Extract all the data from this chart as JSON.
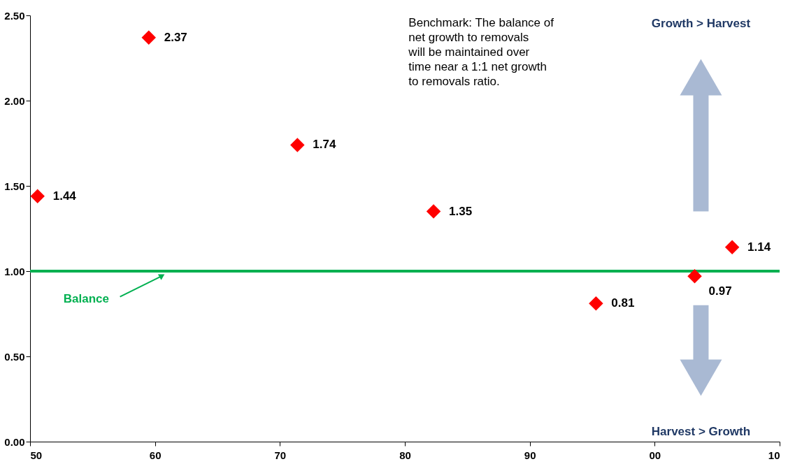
{
  "chart_data": {
    "type": "scatter",
    "x": [
      1950.6,
      1959.5,
      1971.4,
      1982.3,
      1995.3,
      2003.2,
      2006.2
    ],
    "values": [
      1.44,
      2.37,
      1.74,
      1.35,
      0.81,
      0.97,
      1.14
    ],
    "color": "#ff0000",
    "marker": "diamond",
    "data_labels": true,
    "xlim": [
      1950,
      2010
    ],
    "xticks": [
      {
        "value": 1950,
        "label": "50"
      },
      {
        "value": 1960,
        "label": "60"
      },
      {
        "value": 1970,
        "label": "70"
      },
      {
        "value": 1980,
        "label": "80"
      },
      {
        "value": 1990,
        "label": "90"
      },
      {
        "value": 2000,
        "label": "00"
      },
      {
        "value": 2010,
        "label": "10"
      }
    ],
    "ylim": [
      0,
      2.5
    ],
    "yticks": [
      {
        "value": 0,
        "label": "0.00"
      },
      {
        "value": 0.5,
        "label": "0.50"
      },
      {
        "value": 1,
        "label": "1.00"
      },
      {
        "value": 1.5,
        "label": "1.50"
      },
      {
        "value": 2,
        "label": "2.00"
      },
      {
        "value": 2.5,
        "label": "2.50"
      }
    ],
    "grid": false,
    "ref_lines": [
      {
        "axis": "y",
        "value": 1,
        "label": "Balance",
        "color": "#00b050"
      }
    ],
    "annotations": [
      "Benchmark: The balance of net growth to removals will be maintained over time near a 1:1 net growth to removals ratio.",
      "Growth > Harvest",
      "Harvest > Growth"
    ]
  }
}
